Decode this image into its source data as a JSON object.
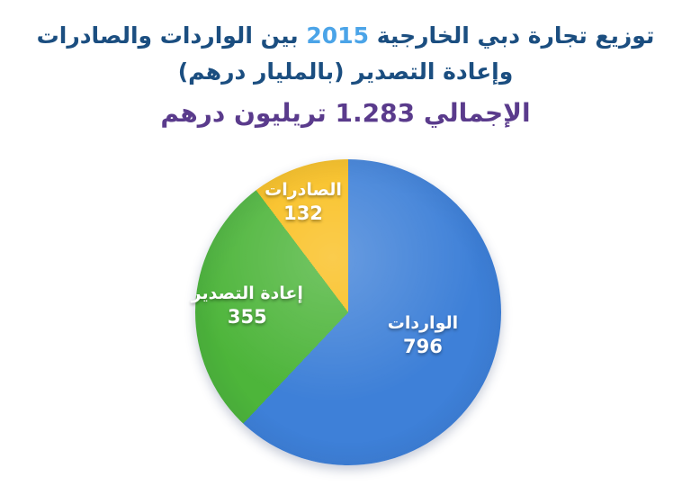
{
  "title": {
    "line1_before_year": "توزيع تجارة دبي الخارجية",
    "year": "2015",
    "line1_after_year": "بين الواردات والصادرات",
    "line2": "وإعادة التصدير (بالمليار درهم)"
  },
  "subtitle": {
    "prefix": "الإجمالي",
    "total_value": "1.283",
    "suffix": "تريليون درهم"
  },
  "colors": {
    "title": "#1b4e80",
    "year": "#4ba4e8",
    "subtitle": "#5a3b8c",
    "label_text": "#ffffff"
  },
  "chart_data": {
    "type": "pie",
    "title": "توزيع تجارة دبي الخارجية 2015 بين الواردات والصادرات وإعادة التصدير (بالمليار درهم)",
    "subtitle": "الإجمالي 1.283 تريليون درهم",
    "unit": "مليار درهم",
    "total_billion_aed": 1283,
    "total_trillion_label": "1.283",
    "start_angle_deg": 0,
    "direction": "clockwise",
    "legend_position": "labels-inside-slices",
    "slices": [
      {
        "label": "الواردات",
        "value": 796,
        "color": "#3e80d8",
        "percent": 62.0,
        "label_pos": {
          "x": 74.4,
          "y": 57.5
        }
      },
      {
        "label": "إعادة التصدير",
        "value": 355,
        "color": "#4db53a",
        "percent": 27.7,
        "label_pos": {
          "x": 17.0,
          "y": 48.0
        }
      },
      {
        "label": "الصادرات",
        "value": 132,
        "color": "#f9be1b",
        "percent": 10.3,
        "label_pos": {
          "x": 35.3,
          "y": 14.0
        }
      }
    ]
  }
}
